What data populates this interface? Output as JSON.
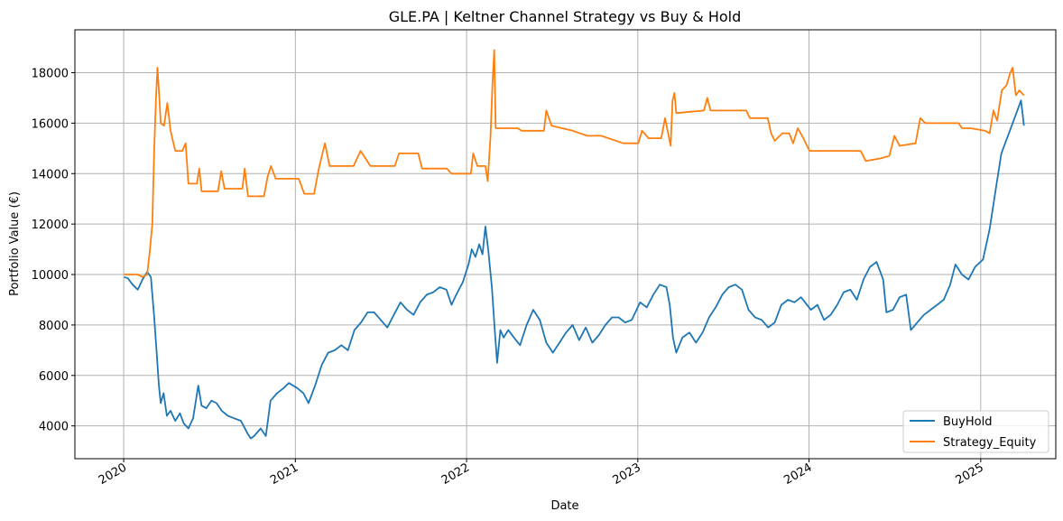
{
  "chart_data": {
    "type": "line",
    "title": "GLE.PA | Keltner Channel Strategy vs Buy & Hold",
    "xlabel": "Date",
    "ylabel": "Portfolio Value (€)",
    "xlim": [
      "2019-09-19",
      "2025-06-10"
    ],
    "ylim": [
      2700,
      19700
    ],
    "x_ticks": [
      "2020",
      "2021",
      "2022",
      "2023",
      "2024",
      "2025"
    ],
    "y_ticks": [
      4000,
      6000,
      8000,
      10000,
      12000,
      14000,
      16000,
      18000
    ],
    "grid": true,
    "legend_position": "lower-right",
    "colors": {
      "BuyHold": "#1f77b4",
      "Strategy_Equity": "#ff7f0e"
    },
    "series": [
      {
        "name": "BuyHold",
        "color": "#1f77b4",
        "points": [
          [
            "2020-01-02",
            9900
          ],
          [
            "2020-01-10",
            9850
          ],
          [
            "2020-01-20",
            9600
          ],
          [
            "2020-01-31",
            9400
          ],
          [
            "2020-02-10",
            9800
          ],
          [
            "2020-02-20",
            10100
          ],
          [
            "2020-02-28",
            9900
          ],
          [
            "2020-03-06",
            8300
          ],
          [
            "2020-03-12",
            6700
          ],
          [
            "2020-03-16",
            5600
          ],
          [
            "2020-03-20",
            4900
          ],
          [
            "2020-03-26",
            5300
          ],
          [
            "2020-04-02",
            4400
          ],
          [
            "2020-04-10",
            4600
          ],
          [
            "2020-04-20",
            4200
          ],
          [
            "2020-04-30",
            4500
          ],
          [
            "2020-05-08",
            4100
          ],
          [
            "2020-05-18",
            3900
          ],
          [
            "2020-05-28",
            4300
          ],
          [
            "2020-06-08",
            5600
          ],
          [
            "2020-06-15",
            4800
          ],
          [
            "2020-06-25",
            4700
          ],
          [
            "2020-07-06",
            5000
          ],
          [
            "2020-07-17",
            4900
          ],
          [
            "2020-07-28",
            4600
          ],
          [
            "2020-08-10",
            4400
          ],
          [
            "2020-08-24",
            4300
          ],
          [
            "2020-09-07",
            4200
          ],
          [
            "2020-09-21",
            3700
          ],
          [
            "2020-09-28",
            3500
          ],
          [
            "2020-10-05",
            3600
          ],
          [
            "2020-10-19",
            3900
          ],
          [
            "2020-10-30",
            3600
          ],
          [
            "2020-11-09",
            5000
          ],
          [
            "2020-11-23",
            5300
          ],
          [
            "2020-12-07",
            5500
          ],
          [
            "2020-12-18",
            5700
          ],
          [
            "2021-01-05",
            5500
          ],
          [
            "2021-01-18",
            5300
          ],
          [
            "2021-01-29",
            4900
          ],
          [
            "2021-02-12",
            5600
          ],
          [
            "2021-02-26",
            6400
          ],
          [
            "2021-03-12",
            6900
          ],
          [
            "2021-03-26",
            7000
          ],
          [
            "2021-04-09",
            7200
          ],
          [
            "2021-04-23",
            7000
          ],
          [
            "2021-05-07",
            7800
          ],
          [
            "2021-05-21",
            8100
          ],
          [
            "2021-06-04",
            8500
          ],
          [
            "2021-06-18",
            8500
          ],
          [
            "2021-07-02",
            8200
          ],
          [
            "2021-07-16",
            7900
          ],
          [
            "2021-07-30",
            8400
          ],
          [
            "2021-08-13",
            8900
          ],
          [
            "2021-08-27",
            8600
          ],
          [
            "2021-09-10",
            8400
          ],
          [
            "2021-09-24",
            8900
          ],
          [
            "2021-10-08",
            9200
          ],
          [
            "2021-10-22",
            9300
          ],
          [
            "2021-11-05",
            9500
          ],
          [
            "2021-11-19",
            9400
          ],
          [
            "2021-11-30",
            8800
          ],
          [
            "2021-12-10",
            9200
          ],
          [
            "2021-12-24",
            9700
          ],
          [
            "2022-01-05",
            10400
          ],
          [
            "2022-01-12",
            11000
          ],
          [
            "2022-01-20",
            10700
          ],
          [
            "2022-01-28",
            11200
          ],
          [
            "2022-02-04",
            10800
          ],
          [
            "2022-02-10",
            11900
          ],
          [
            "2022-02-16",
            11000
          ],
          [
            "2022-02-24",
            9500
          ],
          [
            "2022-03-02",
            7800
          ],
          [
            "2022-03-07",
            6500
          ],
          [
            "2022-03-14",
            7800
          ],
          [
            "2022-03-21",
            7500
          ],
          [
            "2022-03-31",
            7800
          ],
          [
            "2022-04-12",
            7500
          ],
          [
            "2022-04-25",
            7200
          ],
          [
            "2022-05-09",
            8000
          ],
          [
            "2022-05-23",
            8600
          ],
          [
            "2022-06-06",
            8200
          ],
          [
            "2022-06-20",
            7300
          ],
          [
            "2022-07-04",
            6900
          ],
          [
            "2022-07-18",
            7300
          ],
          [
            "2022-08-01",
            7700
          ],
          [
            "2022-08-15",
            8000
          ],
          [
            "2022-08-29",
            7400
          ],
          [
            "2022-09-12",
            7900
          ],
          [
            "2022-09-26",
            7300
          ],
          [
            "2022-10-10",
            7600
          ],
          [
            "2022-10-24",
            8000
          ],
          [
            "2022-11-07",
            8300
          ],
          [
            "2022-11-21",
            8300
          ],
          [
            "2022-12-05",
            8100
          ],
          [
            "2022-12-19",
            8200
          ],
          [
            "2023-01-06",
            8900
          ],
          [
            "2023-01-20",
            8700
          ],
          [
            "2023-02-03",
            9200
          ],
          [
            "2023-02-17",
            9600
          ],
          [
            "2023-03-03",
            9500
          ],
          [
            "2023-03-10",
            8800
          ],
          [
            "2023-03-17",
            7500
          ],
          [
            "2023-03-24",
            6900
          ],
          [
            "2023-04-06",
            7500
          ],
          [
            "2023-04-21",
            7700
          ],
          [
            "2023-05-05",
            7300
          ],
          [
            "2023-05-19",
            7700
          ],
          [
            "2023-06-02",
            8300
          ],
          [
            "2023-06-16",
            8700
          ],
          [
            "2023-06-30",
            9200
          ],
          [
            "2023-07-14",
            9500
          ],
          [
            "2023-07-28",
            9600
          ],
          [
            "2023-08-11",
            9400
          ],
          [
            "2023-08-25",
            8600
          ],
          [
            "2023-09-08",
            8300
          ],
          [
            "2023-09-22",
            8200
          ],
          [
            "2023-10-06",
            7900
          ],
          [
            "2023-10-20",
            8100
          ],
          [
            "2023-11-03",
            8800
          ],
          [
            "2023-11-17",
            9000
          ],
          [
            "2023-12-01",
            8900
          ],
          [
            "2023-12-15",
            9100
          ],
          [
            "2024-01-05",
            8600
          ],
          [
            "2024-01-19",
            8800
          ],
          [
            "2024-02-02",
            8200
          ],
          [
            "2024-02-16",
            8400
          ],
          [
            "2024-03-01",
            8800
          ],
          [
            "2024-03-15",
            9300
          ],
          [
            "2024-03-29",
            9400
          ],
          [
            "2024-04-12",
            9000
          ],
          [
            "2024-04-26",
            9800
          ],
          [
            "2024-05-10",
            10300
          ],
          [
            "2024-05-24",
            10500
          ],
          [
            "2024-06-07",
            9800
          ],
          [
            "2024-06-14",
            8500
          ],
          [
            "2024-06-28",
            8600
          ],
          [
            "2024-07-12",
            9100
          ],
          [
            "2024-07-26",
            9200
          ],
          [
            "2024-08-05",
            7800
          ],
          [
            "2024-08-19",
            8100
          ],
          [
            "2024-09-02",
            8400
          ],
          [
            "2024-09-16",
            8600
          ],
          [
            "2024-09-30",
            8800
          ],
          [
            "2024-10-14",
            9000
          ],
          [
            "2024-10-28",
            9600
          ],
          [
            "2024-11-08",
            10400
          ],
          [
            "2024-11-22",
            10000
          ],
          [
            "2024-12-06",
            9800
          ],
          [
            "2024-12-20",
            10300
          ],
          [
            "2025-01-06",
            10600
          ],
          [
            "2025-01-20",
            11800
          ],
          [
            "2025-02-03",
            13500
          ],
          [
            "2025-02-14",
            14800
          ],
          [
            "2025-02-28",
            15500
          ],
          [
            "2025-03-10",
            16000
          ],
          [
            "2025-03-20",
            16500
          ],
          [
            "2025-03-28",
            16900
          ],
          [
            "2025-04-03",
            15900
          ]
        ]
      },
      {
        "name": "Strategy_Equity",
        "color": "#ff7f0e",
        "points": [
          [
            "2020-01-02",
            10000
          ],
          [
            "2020-01-10",
            10000
          ],
          [
            "2020-01-31",
            10000
          ],
          [
            "2020-02-10",
            9900
          ],
          [
            "2020-02-20",
            10000
          ],
          [
            "2020-02-26",
            11000
          ],
          [
            "2020-03-02",
            12000
          ],
          [
            "2020-03-06",
            15000
          ],
          [
            "2020-03-10",
            17000
          ],
          [
            "2020-03-13",
            18200
          ],
          [
            "2020-03-17",
            17000
          ],
          [
            "2020-03-20",
            16000
          ],
          [
            "2020-03-27",
            15900
          ],
          [
            "2020-04-03",
            16800
          ],
          [
            "2020-04-10",
            15700
          ],
          [
            "2020-04-20",
            14900
          ],
          [
            "2020-05-05",
            14900
          ],
          [
            "2020-05-12",
            15200
          ],
          [
            "2020-05-18",
            13600
          ],
          [
            "2020-06-05",
            13600
          ],
          [
            "2020-06-10",
            14200
          ],
          [
            "2020-06-15",
            13300
          ],
          [
            "2020-07-20",
            13300
          ],
          [
            "2020-07-27",
            14100
          ],
          [
            "2020-08-03",
            13400
          ],
          [
            "2020-09-10",
            13400
          ],
          [
            "2020-09-15",
            14200
          ],
          [
            "2020-09-22",
            13100
          ],
          [
            "2020-10-26",
            13100
          ],
          [
            "2020-11-03",
            13900
          ],
          [
            "2020-11-10",
            14300
          ],
          [
            "2020-11-20",
            13800
          ],
          [
            "2021-01-08",
            13800
          ],
          [
            "2021-01-20",
            13200
          ],
          [
            "2021-02-10",
            13200
          ],
          [
            "2021-02-20",
            14200
          ],
          [
            "2021-03-05",
            15200
          ],
          [
            "2021-03-15",
            14300
          ],
          [
            "2021-05-05",
            14300
          ],
          [
            "2021-05-20",
            14900
          ],
          [
            "2021-06-10",
            14300
          ],
          [
            "2021-08-01",
            14300
          ],
          [
            "2021-08-10",
            14800
          ],
          [
            "2021-09-20",
            14800
          ],
          [
            "2021-09-28",
            14200
          ],
          [
            "2021-11-20",
            14200
          ],
          [
            "2021-11-30",
            14000
          ],
          [
            "2022-01-10",
            14000
          ],
          [
            "2022-01-15",
            14800
          ],
          [
            "2022-01-24",
            14300
          ],
          [
            "2022-02-10",
            14300
          ],
          [
            "2022-02-15",
            13700
          ],
          [
            "2022-02-21",
            15500
          ],
          [
            "2022-02-25",
            17500
          ],
          [
            "2022-03-01",
            18900
          ],
          [
            "2022-03-04",
            15800
          ],
          [
            "2022-04-20",
            15800
          ],
          [
            "2022-04-28",
            15700
          ],
          [
            "2022-06-15",
            15700
          ],
          [
            "2022-06-20",
            16500
          ],
          [
            "2022-07-01",
            15900
          ],
          [
            "2022-08-15",
            15700
          ],
          [
            "2022-09-15",
            15500
          ],
          [
            "2022-10-15",
            15500
          ],
          [
            "2022-12-01",
            15200
          ],
          [
            "2023-01-02",
            15200
          ],
          [
            "2023-01-10",
            15700
          ],
          [
            "2023-01-24",
            15400
          ],
          [
            "2023-02-20",
            15400
          ],
          [
            "2023-02-28",
            16200
          ],
          [
            "2023-03-12",
            15100
          ],
          [
            "2023-03-16",
            16900
          ],
          [
            "2023-03-20",
            17200
          ],
          [
            "2023-03-24",
            16400
          ],
          [
            "2023-05-22",
            16500
          ],
          [
            "2023-05-29",
            17000
          ],
          [
            "2023-06-05",
            16500
          ],
          [
            "2023-08-20",
            16500
          ],
          [
            "2023-08-28",
            16200
          ],
          [
            "2023-10-05",
            16200
          ],
          [
            "2023-10-12",
            15600
          ],
          [
            "2023-10-20",
            15300
          ],
          [
            "2023-11-05",
            15600
          ],
          [
            "2023-11-20",
            15600
          ],
          [
            "2023-11-28",
            15200
          ],
          [
            "2023-12-08",
            15800
          ],
          [
            "2023-12-20",
            15400
          ],
          [
            "2024-01-02",
            14900
          ],
          [
            "2024-04-20",
            14900
          ],
          [
            "2024-05-01",
            14500
          ],
          [
            "2024-06-01",
            14600
          ],
          [
            "2024-06-20",
            14700
          ],
          [
            "2024-07-01",
            15500
          ],
          [
            "2024-07-12",
            15100
          ],
          [
            "2024-08-15",
            15200
          ],
          [
            "2024-08-25",
            16200
          ],
          [
            "2024-09-05",
            16000
          ],
          [
            "2024-11-15",
            16000
          ],
          [
            "2024-11-22",
            15800
          ],
          [
            "2024-12-10",
            15800
          ],
          [
            "2025-01-10",
            15700
          ],
          [
            "2025-01-20",
            15600
          ],
          [
            "2025-01-28",
            16500
          ],
          [
            "2025-02-05",
            16100
          ],
          [
            "2025-02-15",
            17300
          ],
          [
            "2025-02-25",
            17500
          ],
          [
            "2025-03-05",
            18000
          ],
          [
            "2025-03-10",
            18200
          ],
          [
            "2025-03-17",
            17100
          ],
          [
            "2025-03-24",
            17300
          ],
          [
            "2025-04-03",
            17100
          ]
        ]
      }
    ]
  }
}
